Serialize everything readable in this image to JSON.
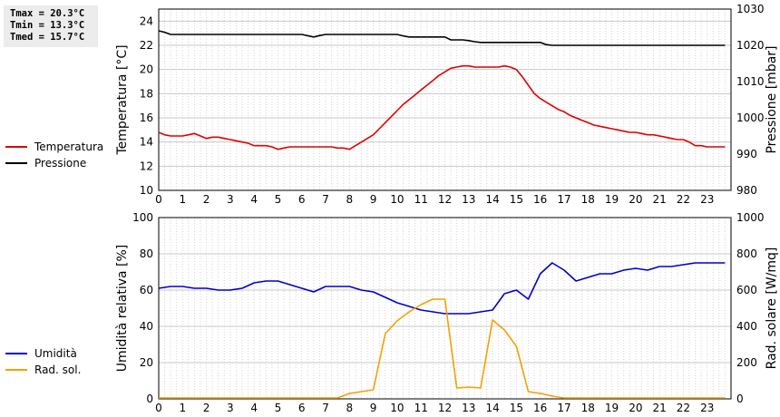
{
  "stats": {
    "tmax": "Tmax = 20.3°C",
    "tmin": "Tmin = 13.3°C",
    "tmed": "Tmed = 15.7°C"
  },
  "legend_top": [
    {
      "label": "Temperatura",
      "color": "#e00000"
    },
    {
      "label": "Pressione",
      "color": "#000000"
    }
  ],
  "legend_bottom": [
    {
      "label": "Umidità",
      "color": "#0000cc"
    },
    {
      "label": "Rad. sol.",
      "color": "#f5a000"
    }
  ],
  "chart_data": [
    {
      "type": "line",
      "ylabel": "Temperatura [°C]",
      "y2label": "Pressione [mbar]",
      "xlim": [
        0,
        24
      ],
      "ylim": [
        10,
        25
      ],
      "y2lim": [
        980,
        1030
      ],
      "xticks": [
        0,
        1,
        2,
        3,
        4,
        5,
        6,
        7,
        8,
        9,
        10,
        11,
        12,
        13,
        14,
        15,
        16,
        17,
        18,
        19,
        20,
        21,
        22,
        23
      ],
      "yticks": [
        10,
        12,
        14,
        16,
        18,
        20,
        22,
        24
      ],
      "y2ticks": [
        980,
        990,
        1000,
        1010,
        1020,
        1030
      ],
      "grid": true,
      "series": [
        {
          "name": "Temperatura",
          "axis": "left",
          "color": "#e00000",
          "x": [
            0,
            0.25,
            0.5,
            0.75,
            1,
            1.25,
            1.5,
            1.75,
            2,
            2.25,
            2.5,
            2.75,
            3,
            3.25,
            3.5,
            3.75,
            4,
            4.25,
            4.5,
            4.75,
            5,
            5.25,
            5.5,
            5.75,
            6,
            6.25,
            6.5,
            6.75,
            7,
            7.25,
            7.5,
            7.75,
            8,
            8.25,
            8.5,
            8.75,
            9,
            9.25,
            9.5,
            9.75,
            10,
            10.25,
            10.5,
            10.75,
            11,
            11.25,
            11.5,
            11.75,
            12,
            12.25,
            12.5,
            12.75,
            13,
            13.25,
            13.5,
            13.75,
            14,
            14.25,
            14.5,
            14.75,
            15,
            15.25,
            15.5,
            15.75,
            16,
            16.25,
            16.5,
            16.75,
            17,
            17.25,
            17.5,
            17.75,
            18,
            18.25,
            18.5,
            18.75,
            19,
            19.25,
            19.5,
            19.75,
            20,
            20.25,
            20.5,
            20.75,
            21,
            21.25,
            21.5,
            21.75,
            22,
            22.25,
            22.5,
            22.75,
            23,
            23.25,
            23.5,
            23.75
          ],
          "y": [
            14.8,
            14.6,
            14.5,
            14.5,
            14.5,
            14.6,
            14.7,
            14.5,
            14.3,
            14.4,
            14.4,
            14.3,
            14.2,
            14.1,
            14.0,
            13.9,
            13.7,
            13.7,
            13.7,
            13.6,
            13.4,
            13.5,
            13.6,
            13.6,
            13.6,
            13.6,
            13.6,
            13.6,
            13.6,
            13.6,
            13.5,
            13.5,
            13.4,
            13.7,
            14.0,
            14.3,
            14.6,
            15.1,
            15.6,
            16.1,
            16.6,
            17.1,
            17.5,
            17.9,
            18.3,
            18.7,
            19.1,
            19.5,
            19.8,
            20.1,
            20.2,
            20.3,
            20.3,
            20.2,
            20.2,
            20.2,
            20.2,
            20.2,
            20.3,
            20.2,
            20.0,
            19.4,
            18.7,
            18.0,
            17.6,
            17.3,
            17.0,
            16.7,
            16.5,
            16.2,
            16.0,
            15.8,
            15.6,
            15.4,
            15.3,
            15.2,
            15.1,
            15.0,
            14.9,
            14.8,
            14.8,
            14.7,
            14.6,
            14.6,
            14.5,
            14.4,
            14.3,
            14.2,
            14.2,
            14.0,
            13.7,
            13.7,
            13.6,
            13.6,
            13.6,
            13.6
          ]
        },
        {
          "name": "Pressione",
          "axis": "right",
          "color": "#000000",
          "x": [
            0,
            0.25,
            0.5,
            1,
            2,
            3,
            4,
            5,
            6,
            6.5,
            6.75,
            7,
            8,
            9,
            10,
            10.25,
            10.5,
            11,
            12,
            12.25,
            12.75,
            13,
            13.25,
            13.5,
            14,
            14.5,
            15,
            15.5,
            16,
            16.25,
            16.5,
            17,
            18,
            19,
            20,
            21,
            22,
            23,
            23.75
          ],
          "y": [
            1024.0,
            1023.6,
            1023.0,
            1023.0,
            1023.0,
            1023.0,
            1023.0,
            1023.0,
            1023.0,
            1022.3,
            1022.7,
            1023.0,
            1023.0,
            1023.0,
            1023.0,
            1022.6,
            1022.3,
            1022.3,
            1022.3,
            1021.5,
            1021.5,
            1021.3,
            1021.0,
            1020.8,
            1020.8,
            1020.8,
            1020.8,
            1020.8,
            1020.8,
            1020.2,
            1020.0,
            1020.0,
            1020.0,
            1020.0,
            1020.0,
            1020.0,
            1020.0,
            1020.0,
            1020.0
          ]
        }
      ]
    },
    {
      "type": "line",
      "ylabel": "Umidità relativa [%]",
      "y2label": "Rad. solare [W/mq]",
      "xlim": [
        0,
        24
      ],
      "ylim": [
        0,
        100
      ],
      "y2lim": [
        0,
        1000
      ],
      "xticks": [
        0,
        1,
        2,
        3,
        4,
        5,
        6,
        7,
        8,
        9,
        10,
        11,
        12,
        13,
        14,
        15,
        16,
        17,
        18,
        19,
        20,
        21,
        22,
        23
      ],
      "yticks": [
        0,
        20,
        40,
        60,
        80,
        100
      ],
      "y2ticks": [
        0,
        200,
        400,
        600,
        800,
        1000
      ],
      "grid": true,
      "series": [
        {
          "name": "Umidità",
          "axis": "left",
          "color": "#0000cc",
          "x": [
            0,
            0.5,
            1,
            1.5,
            2,
            2.5,
            3,
            3.5,
            4,
            4.5,
            5,
            5.5,
            6,
            6.5,
            7,
            7.5,
            8,
            8.5,
            9,
            9.5,
            10,
            10.5,
            11,
            11.5,
            12,
            12.5,
            13,
            13.5,
            14,
            14.5,
            15,
            15.5,
            16,
            16.5,
            17,
            17.5,
            18,
            18.5,
            19,
            19.5,
            20,
            20.5,
            21,
            21.5,
            22,
            22.5,
            23,
            23.5,
            23.75
          ],
          "y": [
            61,
            62,
            62,
            61,
            61,
            60,
            60,
            61,
            64,
            65,
            65,
            63,
            61,
            59,
            62,
            62,
            62,
            60,
            59,
            56,
            53,
            51,
            49,
            48,
            47,
            47,
            47,
            48,
            49,
            58,
            60,
            55,
            69,
            75,
            71,
            65,
            67,
            69,
            69,
            71,
            72,
            71,
            73,
            73,
            74,
            75,
            75,
            75,
            75
          ]
        },
        {
          "name": "Rad. sol.",
          "axis": "right",
          "color": "#f5a000",
          "x": [
            0,
            1,
            2,
            3,
            4,
            5,
            6,
            7,
            7.5,
            8,
            8.5,
            9,
            9.5,
            10,
            10.5,
            11,
            11.5,
            12,
            12.5,
            13,
            13.5,
            14,
            14.5,
            15,
            15.5,
            16,
            16.5,
            17,
            18,
            19,
            20,
            21,
            22,
            23,
            23.75
          ],
          "y": [
            5,
            5,
            5,
            5,
            5,
            5,
            5,
            5,
            5,
            30,
            40,
            50,
            360,
            430,
            480,
            520,
            550,
            550,
            60,
            65,
            60,
            435,
            380,
            290,
            40,
            30,
            15,
            5,
            5,
            5,
            5,
            5,
            5,
            5,
            5
          ]
        }
      ]
    }
  ]
}
